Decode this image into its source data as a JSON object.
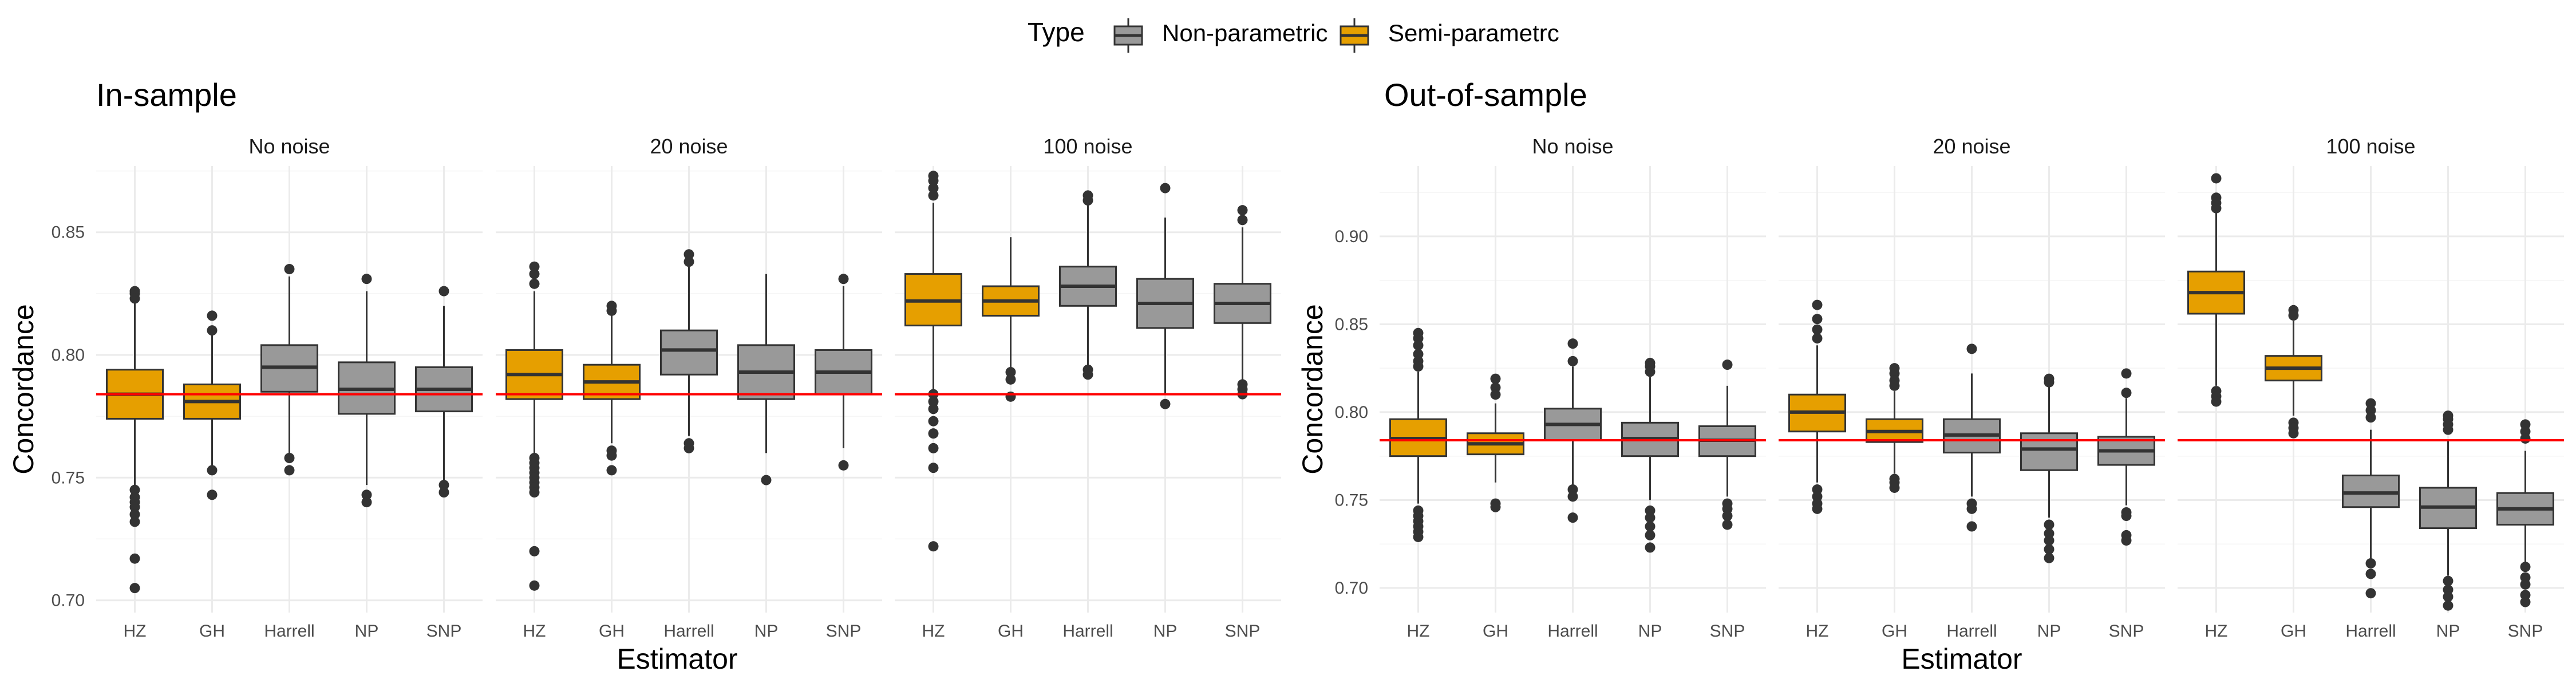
{
  "legend": {
    "title": "Type",
    "items": [
      {
        "label": "Non-parametric",
        "color": "#999999"
      },
      {
        "label": "Semi-parametrc",
        "color": "#E69F00"
      }
    ]
  },
  "colors": {
    "Non-parametric": "#999999",
    "Semi-parametrc": "#E69F00",
    "reference_line": "#ff0000"
  },
  "chart_data": [
    {
      "type": "boxplot",
      "title": "In-sample",
      "xlabel": "Estimator",
      "ylabel": "Concordance",
      "ylim": [
        0.695,
        0.877
      ],
      "yticks": [
        0.7,
        0.75,
        0.8,
        0.85
      ],
      "reference_line": 0.784,
      "categories": [
        "HZ",
        "GH",
        "Harrell",
        "NP",
        "SNP"
      ],
      "category_type": [
        "Semi-parametrc",
        "Semi-parametrc",
        "Non-parametric",
        "Non-parametric",
        "Non-parametric"
      ],
      "facets": [
        {
          "label": "No noise",
          "boxes": [
            {
              "min": 0.747,
              "q1": 0.774,
              "median": 0.784,
              "q3": 0.794,
              "max": 0.822,
              "outliers": [
                0.826,
                0.825,
                0.823,
                0.745,
                0.742,
                0.74,
                0.738,
                0.735,
                0.732,
                0.717,
                0.705
              ]
            },
            {
              "min": 0.755,
              "q1": 0.774,
              "median": 0.781,
              "q3": 0.788,
              "max": 0.808,
              "outliers": [
                0.816,
                0.81,
                0.753,
                0.743
              ]
            },
            {
              "min": 0.76,
              "q1": 0.785,
              "median": 0.795,
              "q3": 0.804,
              "max": 0.832,
              "outliers": [
                0.835,
                0.758,
                0.753
              ]
            },
            {
              "min": 0.747,
              "q1": 0.776,
              "median": 0.786,
              "q3": 0.797,
              "max": 0.826,
              "outliers": [
                0.831,
                0.743,
                0.74
              ]
            },
            {
              "min": 0.749,
              "q1": 0.777,
              "median": 0.786,
              "q3": 0.795,
              "max": 0.82,
              "outliers": [
                0.826,
                0.747,
                0.744
              ]
            }
          ]
        },
        {
          "label": "20 noise",
          "boxes": [
            {
              "min": 0.76,
              "q1": 0.782,
              "median": 0.792,
              "q3": 0.802,
              "max": 0.826,
              "outliers": [
                0.836,
                0.833,
                0.829,
                0.758,
                0.756,
                0.754,
                0.752,
                0.75,
                0.748,
                0.746,
                0.744,
                0.72,
                0.706
              ]
            },
            {
              "min": 0.764,
              "q1": 0.782,
              "median": 0.789,
              "q3": 0.796,
              "max": 0.816,
              "outliers": [
                0.82,
                0.818,
                0.761,
                0.759,
                0.753
              ]
            },
            {
              "min": 0.767,
              "q1": 0.792,
              "median": 0.802,
              "q3": 0.81,
              "max": 0.836,
              "outliers": [
                0.841,
                0.838,
                0.764,
                0.762
              ]
            },
            {
              "min": 0.76,
              "q1": 0.782,
              "median": 0.793,
              "q3": 0.804,
              "max": 0.833,
              "outliers": [
                0.749
              ]
            },
            {
              "min": 0.762,
              "q1": 0.784,
              "median": 0.793,
              "q3": 0.802,
              "max": 0.828,
              "outliers": [
                0.831,
                0.755
              ]
            }
          ]
        },
        {
          "label": "100 noise",
          "boxes": [
            {
              "min": 0.786,
              "q1": 0.812,
              "median": 0.822,
              "q3": 0.833,
              "max": 0.862,
              "outliers": [
                0.873,
                0.871,
                0.868,
                0.865,
                0.784,
                0.781,
                0.778,
                0.773,
                0.768,
                0.762,
                0.754,
                0.722
              ]
            },
            {
              "min": 0.795,
              "q1": 0.816,
              "median": 0.822,
              "q3": 0.828,
              "max": 0.848,
              "outliers": [
                0.793,
                0.79,
                0.783
              ]
            },
            {
              "min": 0.796,
              "q1": 0.82,
              "median": 0.828,
              "q3": 0.836,
              "max": 0.862,
              "outliers": [
                0.865,
                0.863,
                0.794,
                0.792
              ]
            },
            {
              "min": 0.784,
              "q1": 0.811,
              "median": 0.821,
              "q3": 0.831,
              "max": 0.856,
              "outliers": [
                0.868,
                0.78
              ]
            },
            {
              "min": 0.79,
              "q1": 0.813,
              "median": 0.821,
              "q3": 0.829,
              "max": 0.852,
              "outliers": [
                0.859,
                0.855,
                0.788,
                0.786,
                0.784
              ]
            }
          ]
        }
      ]
    },
    {
      "type": "boxplot",
      "title": "Out-of-sample",
      "xlabel": "Estimator",
      "ylabel": "Concordance",
      "ylim": [
        0.686,
        0.94
      ],
      "yticks": [
        0.7,
        0.75,
        0.8,
        0.85,
        0.9
      ],
      "reference_line": 0.784,
      "categories": [
        "HZ",
        "GH",
        "Harrell",
        "NP",
        "SNP"
      ],
      "category_type": [
        "Semi-parametrc",
        "Semi-parametrc",
        "Non-parametric",
        "Non-parametric",
        "Non-parametric"
      ],
      "facets": [
        {
          "label": "No noise",
          "boxes": [
            {
              "min": 0.748,
              "q1": 0.775,
              "median": 0.785,
              "q3": 0.796,
              "max": 0.823,
              "outliers": [
                0.845,
                0.842,
                0.838,
                0.833,
                0.829,
                0.826,
                0.744,
                0.741,
                0.738,
                0.735,
                0.732,
                0.729
              ]
            },
            {
              "min": 0.76,
              "q1": 0.776,
              "median": 0.782,
              "q3": 0.788,
              "max": 0.805,
              "outliers": [
                0.819,
                0.814,
                0.81,
                0.748,
                0.746
              ]
            },
            {
              "min": 0.758,
              "q1": 0.784,
              "median": 0.793,
              "q3": 0.802,
              "max": 0.826,
              "outliers": [
                0.839,
                0.829,
                0.756,
                0.752,
                0.74
              ]
            },
            {
              "min": 0.75,
              "q1": 0.775,
              "median": 0.785,
              "q3": 0.794,
              "max": 0.82,
              "outliers": [
                0.828,
                0.826,
                0.823,
                0.744,
                0.74,
                0.735,
                0.73,
                0.723
              ]
            },
            {
              "min": 0.752,
              "q1": 0.775,
              "median": 0.784,
              "q3": 0.792,
              "max": 0.815,
              "outliers": [
                0.827,
                0.748,
                0.745,
                0.741,
                0.736
              ]
            }
          ]
        },
        {
          "label": "20 noise",
          "boxes": [
            {
              "min": 0.76,
              "q1": 0.789,
              "median": 0.8,
              "q3": 0.81,
              "max": 0.838,
              "outliers": [
                0.861,
                0.853,
                0.847,
                0.842,
                0.756,
                0.752,
                0.748,
                0.745
              ]
            },
            {
              "min": 0.765,
              "q1": 0.783,
              "median": 0.789,
              "q3": 0.796,
              "max": 0.812,
              "outliers": [
                0.825,
                0.822,
                0.818,
                0.815,
                0.762,
                0.76,
                0.757
              ]
            },
            {
              "min": 0.752,
              "q1": 0.777,
              "median": 0.787,
              "q3": 0.796,
              "max": 0.822,
              "outliers": [
                0.836,
                0.748,
                0.745,
                0.735
              ]
            },
            {
              "min": 0.74,
              "q1": 0.767,
              "median": 0.779,
              "q3": 0.788,
              "max": 0.815,
              "outliers": [
                0.819,
                0.817,
                0.736,
                0.731,
                0.727,
                0.722,
                0.717
              ]
            },
            {
              "min": 0.747,
              "q1": 0.77,
              "median": 0.778,
              "q3": 0.786,
              "max": 0.808,
              "outliers": [
                0.822,
                0.811,
                0.743,
                0.741,
                0.73,
                0.727
              ]
            }
          ]
        },
        {
          "label": "100 noise",
          "boxes": [
            {
              "min": 0.815,
              "q1": 0.856,
              "median": 0.868,
              "q3": 0.88,
              "max": 0.914,
              "outliers": [
                0.933,
                0.922,
                0.919,
                0.916,
                0.812,
                0.809,
                0.806
              ]
            },
            {
              "min": 0.798,
              "q1": 0.818,
              "median": 0.825,
              "q3": 0.832,
              "max": 0.852,
              "outliers": [
                0.858,
                0.855,
                0.794,
                0.791,
                0.788
              ]
            },
            {
              "min": 0.716,
              "q1": 0.746,
              "median": 0.754,
              "q3": 0.764,
              "max": 0.79,
              "outliers": [
                0.805,
                0.801,
                0.797,
                0.714,
                0.708,
                0.697
              ]
            },
            {
              "min": 0.707,
              "q1": 0.734,
              "median": 0.746,
              "q3": 0.757,
              "max": 0.784,
              "outliers": [
                0.798,
                0.796,
                0.793,
                0.79,
                0.704,
                0.699,
                0.695,
                0.69
              ]
            },
            {
              "min": 0.714,
              "q1": 0.736,
              "median": 0.745,
              "q3": 0.754,
              "max": 0.778,
              "outliers": [
                0.793,
                0.789,
                0.785,
                0.712,
                0.706,
                0.702,
                0.696,
                0.692
              ]
            }
          ]
        }
      ]
    }
  ]
}
